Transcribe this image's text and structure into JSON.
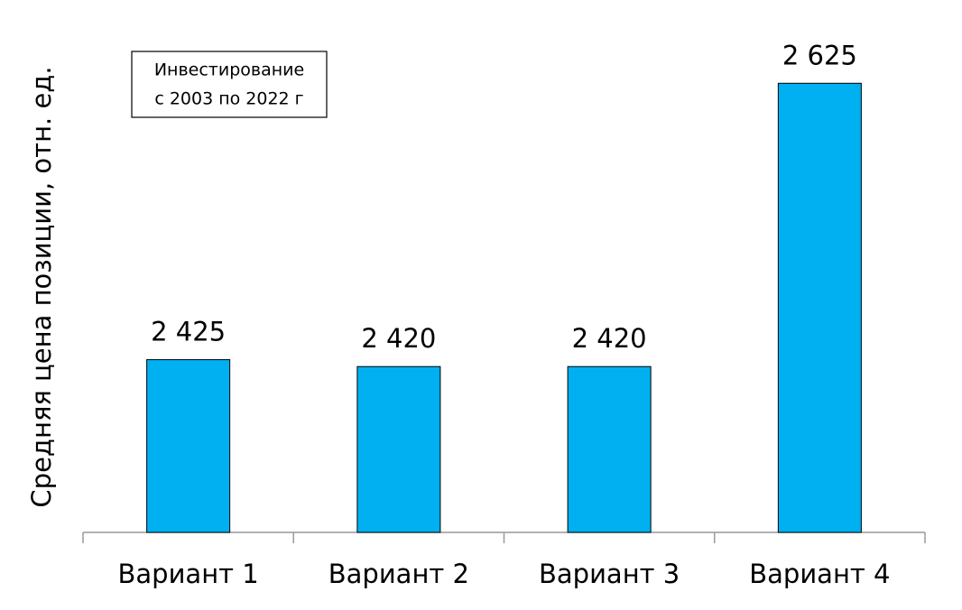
{
  "chart_data": {
    "type": "bar",
    "y_label": "Средняя цена позиции, отн. ед.",
    "annotation": [
      "Инвестирование",
      "с 2003 по 2022 г"
    ],
    "categories": [
      "Вариант 1",
      "Вариант 2",
      "Вариант 3",
      "Вариант 4"
    ],
    "values": [
      2425,
      2420,
      2420,
      2625
    ],
    "value_labels": [
      "2 425",
      "2 420",
      "2 420",
      "2 625"
    ],
    "color": "#00b0f0",
    "ylim": [
      2300,
      2650
    ]
  }
}
